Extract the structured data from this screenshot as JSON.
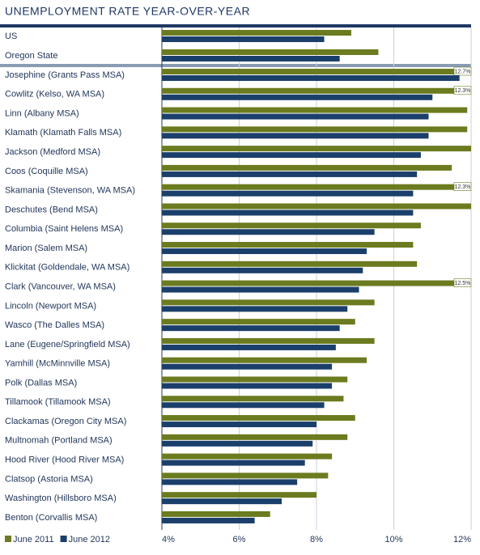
{
  "chart_data": {
    "type": "bar",
    "orientation": "horizontal",
    "title": "UNEMPLOYMENT RATE YEAR-OVER-YEAR",
    "categories": [
      "US",
      "Oregon State",
      "Josephine (Grants Pass MSA)",
      "Cowlitz (Kelso, WA MSA)",
      "Linn (Albany MSA)",
      "Klamath (Klamath Falls MSA)",
      "Jackson (Medford MSA)",
      "Coos (Coquille MSA)",
      "Skamania (Stevenson, WA MSA)",
      "Deschutes (Bend MSA)",
      "Columbia (Saint Helens MSA)",
      "Marion (Salem MSA)",
      "Klickitat (Goldendale, WA MSA)",
      "Clark (Vancouver, WA MSA)",
      "Lincoln (Newport MSA)",
      "Wasco (The Dalles MSA)",
      "Lane (Eugene/Springfield MSA)",
      "Yamhill (McMinnville MSA)",
      "Polk (Dallas MSA)",
      "Tillamook (Tillamook MSA)",
      "Clackamas (Oregon City MSA)",
      "Multnomah (Portland MSA)",
      "Hood River (Hood River MSA)",
      "Clatsop (Astoria MSA)",
      "Washington (Hillsboro MSA)",
      "Benton (Corvallis MSA)"
    ],
    "series": [
      {
        "name": "June 2011",
        "color": "#6b7b1f",
        "values": [
          8.9,
          9.6,
          12.7,
          12.3,
          11.9,
          11.9,
          12.0,
          11.5,
          12.3,
          12.0,
          10.7,
          10.5,
          10.6,
          12.5,
          9.5,
          9.0,
          9.5,
          9.3,
          8.8,
          8.7,
          9.0,
          8.8,
          8.4,
          8.3,
          8.0,
          6.8
        ],
        "value_labels": [
          null,
          null,
          "12.7%",
          "12.3%",
          null,
          null,
          null,
          null,
          "12.3%",
          null,
          null,
          null,
          null,
          "12.5%",
          null,
          null,
          null,
          null,
          null,
          null,
          null,
          null,
          null,
          null,
          null,
          null
        ]
      },
      {
        "name": "June 2012",
        "color": "#1b3f6b",
        "values": [
          8.2,
          8.6,
          11.7,
          11.0,
          10.9,
          10.9,
          10.7,
          10.6,
          10.5,
          10.5,
          9.5,
          9.3,
          9.2,
          9.1,
          8.8,
          8.6,
          8.5,
          8.4,
          8.4,
          8.2,
          8.0,
          7.9,
          7.7,
          7.5,
          7.1,
          6.4
        ]
      }
    ],
    "xlim": [
      4,
      12
    ],
    "xticks": [
      {
        "value": 4,
        "label": "4%"
      },
      {
        "value": 6,
        "label": "6%"
      },
      {
        "value": 8,
        "label": "8%"
      },
      {
        "value": 10,
        "label": "10%"
      },
      {
        "value": 12,
        "label": "12%"
      }
    ],
    "grid": true
  }
}
